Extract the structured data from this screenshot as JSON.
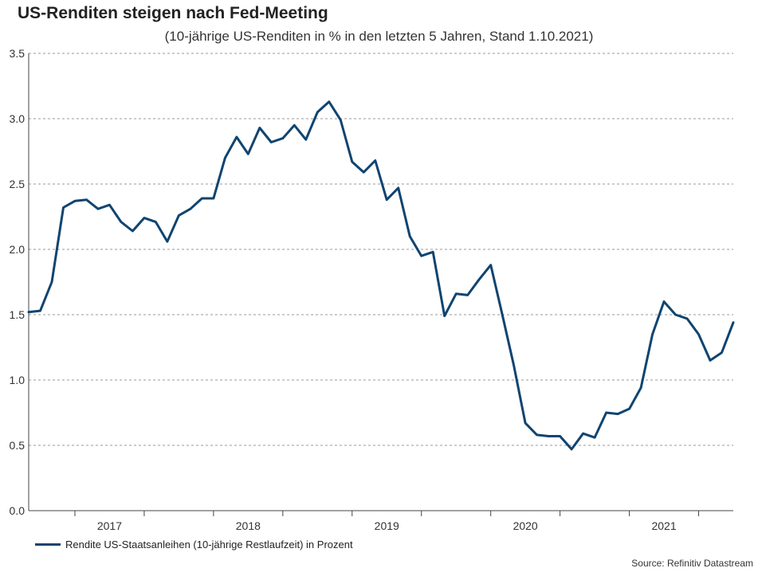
{
  "title": "US-Renditen steigen nach Fed-Meeting",
  "subtitle": "(10-jährige US-Renditen in % in den letzten 5 Jahren, Stand 1.10.2021)",
  "source": "Source: Refinitiv Datastream",
  "chart_data": {
    "type": "line",
    "title": "US-Renditen steigen nach Fed-Meeting",
    "subtitle": "(10-jährige US-Renditen in % in den letzten 5 Jahren, Stand 1.10.2021)",
    "xlabel": "",
    "ylabel": "",
    "ylim": [
      0,
      3.5
    ],
    "yticks": [
      "0.0",
      "0.5",
      "1.0",
      "1.5",
      "2.0",
      "2.5",
      "3.0",
      "3.5"
    ],
    "xticks": [
      "2017",
      "2018",
      "2019",
      "2020",
      "2021"
    ],
    "grid": "horizontal dashed",
    "legend_position": "bottom-left",
    "line_color": "#0f4470",
    "series": [
      {
        "name": "Rendite US-Staatsanleihen (10-jährige Restlaufzeit) in Prozent",
        "x": [
          "2016-09",
          "2016-10",
          "2016-11",
          "2016-12",
          "2017-01",
          "2017-02",
          "2017-03",
          "2017-04",
          "2017-05",
          "2017-06",
          "2017-07",
          "2017-08",
          "2017-09",
          "2017-10",
          "2017-11",
          "2017-12",
          "2018-01",
          "2018-02",
          "2018-03",
          "2018-04",
          "2018-05",
          "2018-06",
          "2018-07",
          "2018-08",
          "2018-09",
          "2018-10",
          "2018-11",
          "2018-12",
          "2019-01",
          "2019-02",
          "2019-03",
          "2019-04",
          "2019-05",
          "2019-06",
          "2019-07",
          "2019-08",
          "2019-09",
          "2019-10",
          "2019-11",
          "2019-12",
          "2020-01",
          "2020-02",
          "2020-03",
          "2020-04",
          "2020-05",
          "2020-06",
          "2020-07",
          "2020-08",
          "2020-09",
          "2020-10",
          "2020-11",
          "2020-12",
          "2021-01",
          "2021-02",
          "2021-03",
          "2021-04",
          "2021-05",
          "2021-06",
          "2021-07",
          "2021-08",
          "2021-09",
          "2021-10"
        ],
        "values": [
          1.52,
          1.53,
          1.75,
          2.32,
          2.37,
          2.38,
          2.31,
          2.34,
          2.21,
          2.14,
          2.24,
          2.21,
          2.06,
          2.26,
          2.31,
          2.39,
          2.39,
          2.7,
          2.86,
          2.73,
          2.93,
          2.82,
          2.85,
          2.95,
          2.84,
          3.05,
          3.13,
          2.99,
          2.67,
          2.59,
          2.68,
          2.38,
          2.47,
          2.1,
          1.95,
          1.98,
          1.49,
          1.66,
          1.65,
          1.77,
          1.88,
          1.5,
          1.11,
          0.67,
          0.58,
          0.57,
          0.57,
          0.47,
          0.59,
          0.56,
          0.75,
          0.74,
          0.78,
          0.94,
          1.35,
          1.6,
          1.5,
          1.47,
          1.35,
          1.15,
          1.21,
          1.44
        ]
      }
    ]
  }
}
